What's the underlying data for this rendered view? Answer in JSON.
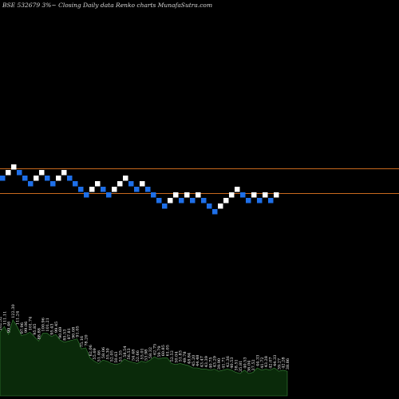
{
  "title": "BSE 532679 3%~ Closing Daily data Renko charts MunafaSutra.com",
  "colors": {
    "background": "#000000",
    "up_brick": "#ffffff",
    "down_brick": "#1e6fe8",
    "reference_line": "#c8691e",
    "volume_fill": "#0a2a0a",
    "volume_edge": "#3a8a3a",
    "label_color": "#ffffff"
  },
  "chart_data": {
    "type": "renko",
    "reference_lines": [
      211,
      242
    ],
    "bricks": [
      {
        "dir": "down",
        "level": 2
      },
      {
        "dir": "up",
        "level": 1
      },
      {
        "dir": "up",
        "level": 0
      },
      {
        "dir": "down",
        "level": 1
      },
      {
        "dir": "down",
        "level": 2
      },
      {
        "dir": "down",
        "level": 3
      },
      {
        "dir": "up",
        "level": 2
      },
      {
        "dir": "up",
        "level": 1
      },
      {
        "dir": "down",
        "level": 2
      },
      {
        "dir": "down",
        "level": 3
      },
      {
        "dir": "up",
        "level": 2
      },
      {
        "dir": "up",
        "level": 1
      },
      {
        "dir": "down",
        "level": 2
      },
      {
        "dir": "down",
        "level": 3
      },
      {
        "dir": "down",
        "level": 4
      },
      {
        "dir": "down",
        "level": 5
      },
      {
        "dir": "up",
        "level": 4
      },
      {
        "dir": "up",
        "level": 3
      },
      {
        "dir": "down",
        "level": 4
      },
      {
        "dir": "down",
        "level": 5
      },
      {
        "dir": "up",
        "level": 4
      },
      {
        "dir": "up",
        "level": 3
      },
      {
        "dir": "up",
        "level": 2
      },
      {
        "dir": "down",
        "level": 3
      },
      {
        "dir": "down",
        "level": 4
      },
      {
        "dir": "up",
        "level": 3
      },
      {
        "dir": "down",
        "level": 4
      },
      {
        "dir": "down",
        "level": 5
      },
      {
        "dir": "down",
        "level": 6
      },
      {
        "dir": "down",
        "level": 7
      },
      {
        "dir": "up",
        "level": 6
      },
      {
        "dir": "up",
        "level": 5
      },
      {
        "dir": "down",
        "level": 6
      },
      {
        "dir": "up",
        "level": 5
      },
      {
        "dir": "down",
        "level": 6
      },
      {
        "dir": "up",
        "level": 5
      },
      {
        "dir": "down",
        "level": 6
      },
      {
        "dir": "down",
        "level": 7
      },
      {
        "dir": "down",
        "level": 8
      },
      {
        "dir": "up",
        "level": 7
      },
      {
        "dir": "up",
        "level": 6
      },
      {
        "dir": "up",
        "level": 5
      },
      {
        "dir": "up",
        "level": 4
      },
      {
        "dir": "down",
        "level": 5
      },
      {
        "dir": "down",
        "level": 6
      },
      {
        "dir": "up",
        "level": 5
      },
      {
        "dir": "down",
        "level": 6
      },
      {
        "dir": "up",
        "level": 5
      },
      {
        "dir": "down",
        "level": 6
      },
      {
        "dir": "up",
        "level": 5
      }
    ],
    "volume": {
      "labels": [
        "102.52",
        "111.11",
        "99.46",
        "122.30",
        "111.24",
        "97.96",
        "99.06",
        "101.74",
        "95.85",
        "88.88",
        "100.96",
        "101.21",
        "95.43",
        "99.45",
        "90.69",
        "85.53",
        "87.81",
        "90.08",
        "91.05",
        "75.16",
        "78.20",
        "62.06",
        "55.69",
        "51.46",
        "58.06",
        "55.30",
        "52.05",
        "50.63",
        "51.35",
        "58.54",
        "56.53",
        "54.48",
        "52.66",
        "55.01",
        "53.98",
        "58.32",
        "62.75",
        "59.79",
        "60.85",
        "61.05",
        "52.52",
        "50.04",
        "51.83",
        "49.78",
        "48.84",
        "45.20",
        "44.48",
        "43.47",
        "43.39",
        "40.75",
        "43.29",
        "39.90",
        "41.71",
        "42.36",
        "40.53",
        "38.51",
        "35.81",
        "40.53",
        "36.04",
        "37.52",
        "44.33",
        "41.72",
        "43.28",
        "42.07",
        "44.33",
        "39.27",
        "42.28",
        "38.86"
      ],
      "heights": [
        0.57,
        0.62,
        0.55,
        0.68,
        0.62,
        0.54,
        0.55,
        0.57,
        0.53,
        0.49,
        0.56,
        0.56,
        0.53,
        0.55,
        0.5,
        0.48,
        0.49,
        0.5,
        0.51,
        0.42,
        0.43,
        0.34,
        0.31,
        0.29,
        0.32,
        0.31,
        0.29,
        0.28,
        0.29,
        0.33,
        0.31,
        0.3,
        0.29,
        0.31,
        0.3,
        0.32,
        0.35,
        0.33,
        0.34,
        0.34,
        0.29,
        0.28,
        0.29,
        0.28,
        0.27,
        0.25,
        0.25,
        0.24,
        0.24,
        0.23,
        0.24,
        0.22,
        0.23,
        0.24,
        0.23,
        0.21,
        0.2,
        0.23,
        0.2,
        0.21,
        0.25,
        0.23,
        0.24,
        0.23,
        0.25,
        0.22,
        0.23,
        0.22
      ]
    }
  }
}
